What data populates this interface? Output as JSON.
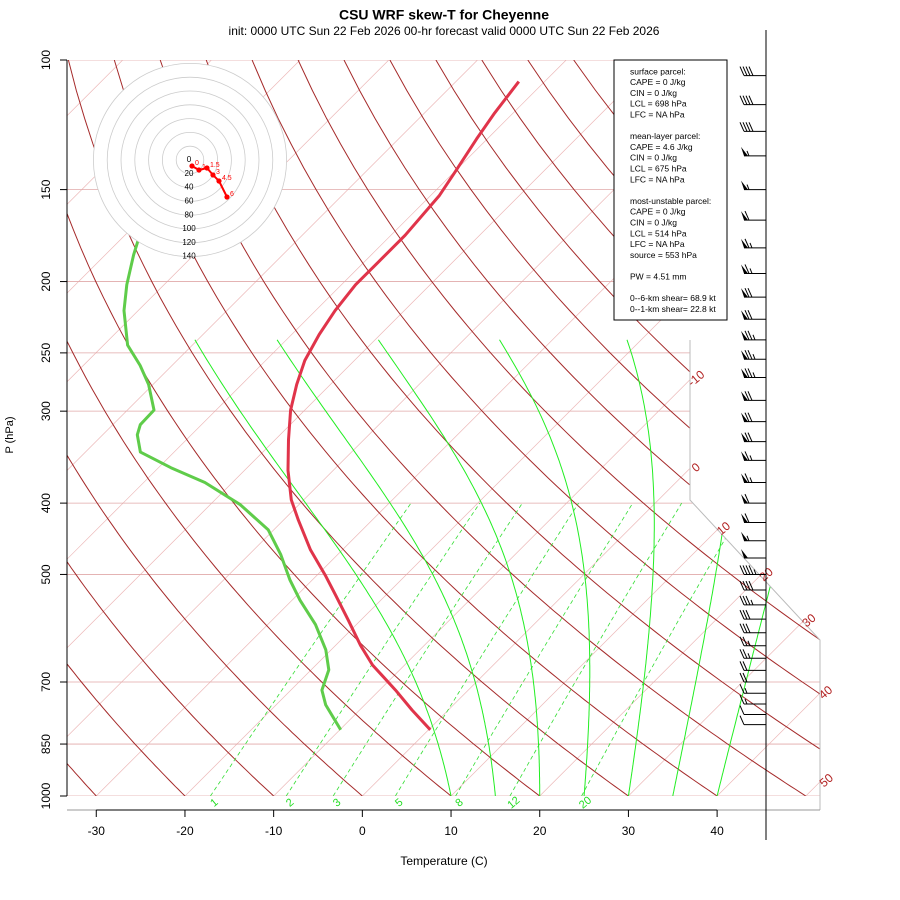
{
  "chart_data": {
    "type": "skewt",
    "title": "CSU WRF skew-T for Cheyenne",
    "subtitle": "init: 0000 UTC Sun 22 Feb 2026    00-hr forecast valid 0000 UTC Sun 22 Feb 2026",
    "x_label": "Temperature (C)",
    "y_label": "P (hPa)",
    "xlim": [
      -33.3,
      51.6
    ],
    "ylim": [
      1000,
      100
    ],
    "log_y": true,
    "xticks": [
      -30,
      -20,
      -10,
      0,
      10,
      20,
      30,
      40
    ],
    "yticks": [
      100,
      150,
      200,
      250,
      300,
      400,
      500,
      700,
      850,
      1000
    ],
    "series": [
      {
        "color": "#e0344a",
        "pressure": [
          813,
          764,
          718,
          664,
          624,
          577,
          533,
          501,
          463,
          422,
          396,
          361,
          328,
          299,
          276,
          256,
          236,
          219,
          202,
          188,
          173,
          153,
          142,
          128,
          118,
          107
        ],
        "values": [
          0.2,
          -4.1,
          -8.2,
          -13.6,
          -17.2,
          -21.4,
          -25.7,
          -29.1,
          -33.6,
          -38.3,
          -41.4,
          -45.1,
          -48.5,
          -51.6,
          -53.8,
          -55.6,
          -56.9,
          -57.8,
          -58.4,
          -58.4,
          -58.4,
          -59.0,
          -59.9,
          -61.2,
          -62.1,
          -62.9
        ]
      },
      {
        "color": "#5fcc4a",
        "pressure": [
          813,
          752,
          718,
          674,
          633,
          585,
          542,
          509,
          470,
          435,
          402,
          375,
          358,
          341,
          323,
          313,
          299,
          276,
          260,
          244,
          219,
          202,
          184,
          176
        ],
        "values": [
          -9.9,
          -14.4,
          -16.5,
          -18.0,
          -20.6,
          -24.6,
          -29.1,
          -32.5,
          -36.4,
          -40.6,
          -46.6,
          -53.1,
          -58.6,
          -63.8,
          -66.1,
          -66.9,
          -67.0,
          -70.5,
          -73.6,
          -77.3,
          -81.6,
          -84.2,
          -86.8,
          -87.9
        ]
      }
    ],
    "isotherm_labels": [
      -10,
      0,
      10,
      20,
      30,
      40,
      50
    ],
    "isotherm_label_color": "#b22222",
    "mixing_ratio_labels": [
      1,
      2,
      3,
      5,
      8,
      12,
      20
    ],
    "mixing_ratio_color": "#22dd22",
    "hodograph": {
      "color": "#ff0000",
      "ring_labels": [
        0,
        20,
        40,
        60,
        80,
        100,
        120,
        140
      ],
      "heights": [
        0,
        1,
        1.5,
        3,
        4.5,
        6
      ],
      "u": [
        2.9,
        13.0,
        24.6,
        33.3,
        42.0,
        53.6
      ],
      "v": [
        -8.7,
        -14.5,
        -11.6,
        -21.7,
        -30.4,
        -53.6
      ]
    },
    "wind": {
      "pressure": [
        105,
        115,
        125,
        135,
        150,
        165,
        180,
        195,
        210,
        225,
        240,
        255,
        270,
        290,
        310,
        330,
        350,
        375,
        400,
        425,
        450,
        475,
        500,
        525,
        550,
        575,
        600,
        625,
        650,
        675,
        700,
        725,
        750,
        775,
        800
      ],
      "speed": [
        40,
        40,
        40,
        55,
        55,
        60,
        65,
        65,
        70,
        70,
        75,
        75,
        75,
        70,
        70,
        70,
        65,
        65,
        60,
        60,
        55,
        50,
        45,
        40,
        35,
        30,
        30,
        25,
        25,
        20,
        20,
        15,
        15,
        10,
        10
      ]
    },
    "parcel_info": [
      [
        "surface parcel:",
        "CAPE = 0 J/kg",
        "CIN = 0 J/kg",
        "LCL = 698 hPa",
        "LFC = NA hPa"
      ],
      [
        "mean-layer parcel:",
        "CAPE = 4.6 J/kg",
        "CIN = 0 J/kg",
        "LCL = 675 hPa",
        "LFC = NA hPa"
      ],
      [
        "most-unstable parcel:",
        "CAPE = 0 J/kg",
        "CIN = 0 J/kg",
        "LCL = 514 hPa",
        "LFC = NA hPa",
        "source = 553 hPa"
      ],
      [
        "PW =  4.51 mm"
      ],
      [
        "0--6-km shear= 68.9 kt",
        "0--1-km shear= 22.8 kt"
      ]
    ]
  }
}
